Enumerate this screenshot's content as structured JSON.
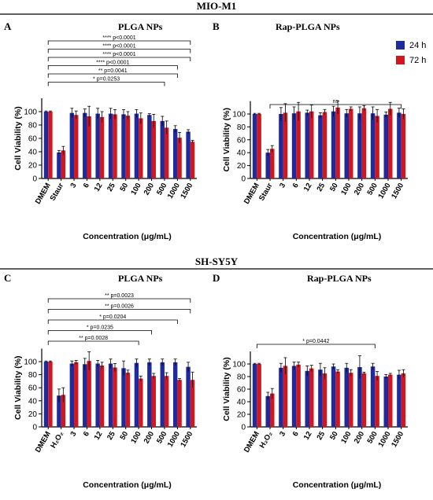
{
  "figure": {
    "sections": [
      {
        "title": "MIO-M1"
      },
      {
        "title": "SH-SY5Y"
      }
    ],
    "legend": {
      "items": [
        {
          "label": "24 h",
          "color": "#1f2a9c"
        },
        {
          "label": "72 h",
          "color": "#d0161e"
        }
      ]
    }
  },
  "colors": {
    "h24": "#1f2a9c",
    "h72": "#d0161e",
    "axis": "#000000"
  },
  "chart_data": [
    {
      "panel": "A",
      "title": "PLGA NPs",
      "type": "bar",
      "ylabel": "Cell Viability (%)",
      "xlabel": "Concentration (μg/mL)",
      "ylim": [
        0,
        120
      ],
      "yticks": [
        0,
        20,
        40,
        60,
        80,
        100
      ],
      "categories": [
        "DMEM",
        "Staur",
        "3",
        "6",
        "12",
        "25",
        "50",
        "100",
        "200",
        "500",
        "1000",
        "1500"
      ],
      "series": [
        {
          "name": "24 h",
          "values": [
            100,
            39,
            98,
            98,
            97,
            97,
            96,
            97,
            95,
            86,
            74,
            70
          ],
          "errors": [
            1,
            3,
            7,
            6,
            8,
            8,
            7,
            6,
            2,
            7,
            5,
            3
          ]
        },
        {
          "name": "72 h",
          "values": [
            100,
            42,
            95,
            93,
            92,
            96,
            94,
            90,
            86,
            76,
            61,
            55
          ],
          "errors": [
            1,
            6,
            6,
            15,
            8,
            7,
            6,
            8,
            10,
            10,
            8,
            2
          ]
        }
      ],
      "annotations": [
        {
          "from": "DMEM",
          "to": "1500",
          "label": "**** p<0.0001"
        },
        {
          "from": "DMEM",
          "to": "1500",
          "label": "**** p<0.0001"
        },
        {
          "from": "DMEM",
          "to": "1500",
          "label": "**** p<0.0001"
        },
        {
          "from": "DMEM",
          "to": "1000",
          "label": "**** p<0.0001"
        },
        {
          "from": "DMEM",
          "to": "1000",
          "label": "** p=0.0041"
        },
        {
          "from": "DMEM",
          "to": "500",
          "label": "* p=0.0253"
        }
      ]
    },
    {
      "panel": "B",
      "title": "Rap-PLGA NPs",
      "type": "bar",
      "ylabel": "Cell Viability (%)",
      "xlabel": "Concentration (μg/mL)",
      "ylim": [
        0,
        120
      ],
      "yticks": [
        0,
        20,
        40,
        60,
        80,
        100
      ],
      "categories": [
        "DMEM",
        "Staur",
        "3",
        "6",
        "12",
        "25",
        "50",
        "100",
        "200",
        "500",
        "1000",
        "1500"
      ],
      "series": [
        {
          "name": "24 h",
          "values": [
            100,
            40,
            100,
            101,
            102,
            98,
            104,
            101,
            101,
            101,
            99,
            102
          ],
          "errors": [
            1,
            5,
            10,
            10,
            4,
            4,
            8,
            6,
            10,
            10,
            4,
            7
          ]
        },
        {
          "name": "72 h",
          "values": [
            100,
            46,
            102,
            104,
            104,
            103,
            110,
            108,
            109,
            97,
            108,
            100
          ],
          "errors": [
            1,
            5,
            14,
            14,
            10,
            4,
            10,
            3,
            4,
            10,
            10,
            8
          ]
        }
      ],
      "annotations": [
        {
          "from": "Staur",
          "to": "1500",
          "label": "ns"
        }
      ]
    },
    {
      "panel": "C",
      "title": "PLGA NPs",
      "type": "bar",
      "ylabel": "Cell Viability (%)",
      "xlabel": "Concentration (μg/mL)",
      "ylim": [
        0,
        120
      ],
      "yticks": [
        0,
        20,
        40,
        60,
        80,
        100
      ],
      "categories": [
        "DMEM",
        "H₂O₂",
        "3",
        "6",
        "12",
        "25",
        "50",
        "100",
        "200",
        "500",
        "1000",
        "1500"
      ],
      "series": [
        {
          "name": "24 h",
          "values": [
            100,
            48,
            97,
            96,
            97,
            97,
            90,
            98,
            99,
            99,
            99,
            92
          ],
          "errors": [
            1,
            10,
            4,
            9,
            5,
            7,
            11,
            6,
            5,
            5,
            5,
            7
          ]
        },
        {
          "name": "72 h",
          "values": [
            100,
            49,
            99,
            101,
            94,
            91,
            83,
            74,
            78,
            78,
            72,
            72
          ],
          "errors": [
            1,
            11,
            3,
            14,
            5,
            6,
            4,
            4,
            4,
            5,
            2,
            12
          ]
        }
      ],
      "annotations": [
        {
          "from": "DMEM",
          "to": "1500",
          "label": "** p=0.0023"
        },
        {
          "from": "DMEM",
          "to": "1500",
          "label": "** p=0.0026"
        },
        {
          "from": "DMEM",
          "to": "1000",
          "label": "* p=0.0204"
        },
        {
          "from": "DMEM",
          "to": "200",
          "label": "* p=0.0235"
        },
        {
          "from": "DMEM",
          "to": "100",
          "label": "** p=0.0028"
        }
      ]
    },
    {
      "panel": "D",
      "title": "Rap-PLGA NPs",
      "type": "bar",
      "ylabel": "Cell Viability (%)",
      "xlabel": "Concentration (μg/mL)",
      "ylim": [
        0,
        120
      ],
      "yticks": [
        0,
        20,
        40,
        60,
        80,
        100
      ],
      "categories": [
        "DMEM",
        "H₂O₂",
        "3",
        "6",
        "12",
        "25",
        "50",
        "100",
        "200",
        "500",
        "1000",
        "1500"
      ],
      "series": [
        {
          "name": "24 h",
          "values": [
            100,
            49,
            94,
            97,
            89,
            91,
            96,
            94,
            95,
            96,
            80,
            83
          ],
          "errors": [
            1,
            6,
            7,
            6,
            8,
            10,
            4,
            7,
            18,
            5,
            3,
            7
          ]
        },
        {
          "name": "72 h",
          "values": [
            100,
            53,
            97,
            99,
            93,
            85,
            88,
            86,
            85,
            81,
            83,
            85
          ],
          "errors": [
            1,
            8,
            13,
            4,
            5,
            9,
            3,
            5,
            2,
            7,
            2,
            6
          ]
        }
      ],
      "annotations": [
        {
          "from": "DMEM",
          "to": "500",
          "label": "* p=0.0442"
        }
      ]
    }
  ]
}
